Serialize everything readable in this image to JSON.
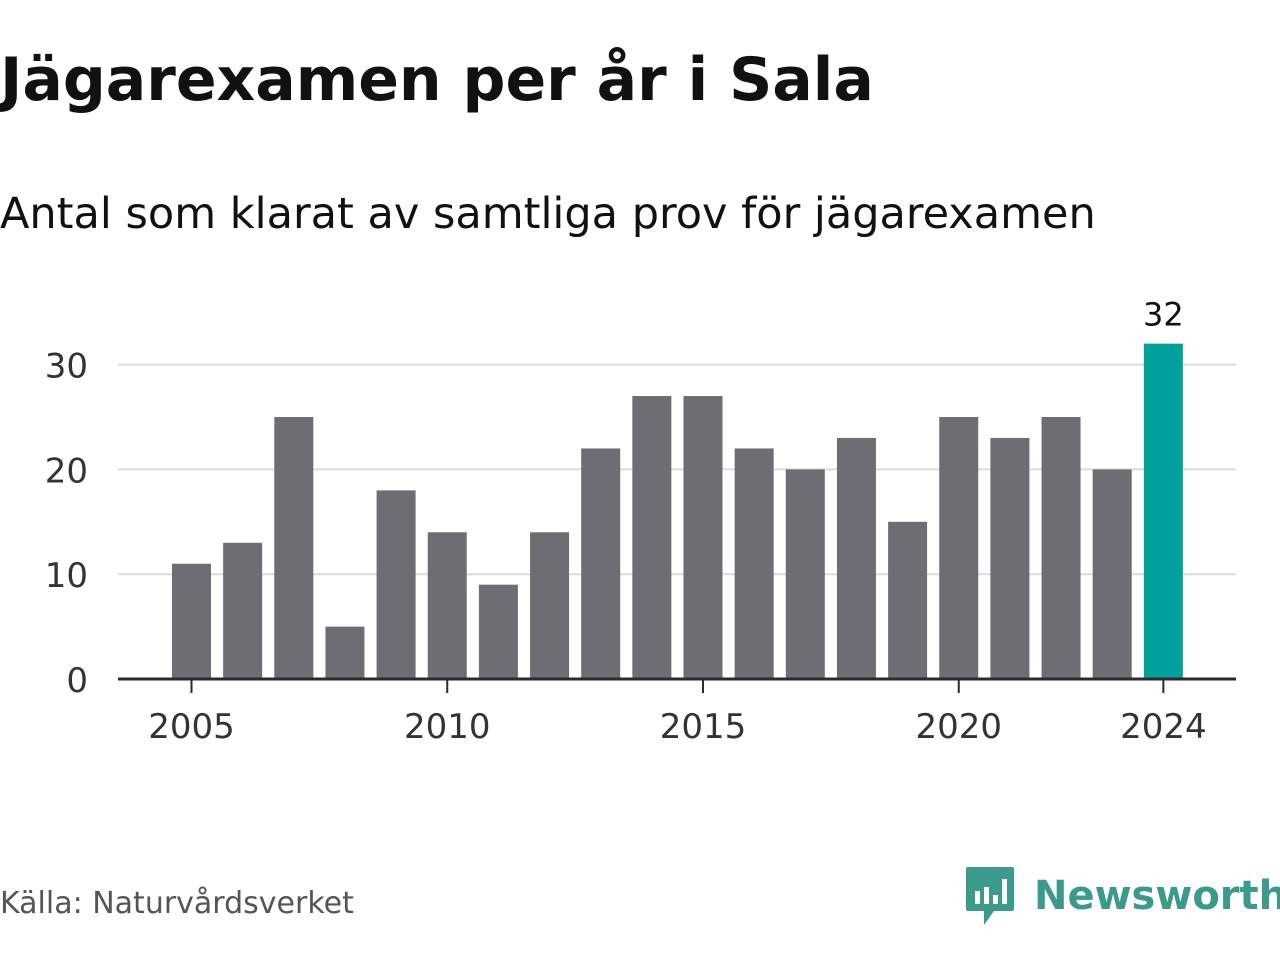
{
  "title": "Jägarexamen per år i Sala",
  "subtitle": "Antal som klarat av samtliga prov för jägarexamen",
  "source": "Källa: Naturvårdsverket",
  "brand": {
    "name": "Newsworthy",
    "icon": "newsworthy-logo-icon",
    "color": "#3b9a8c"
  },
  "colors": {
    "bar": "#6e6d73",
    "highlight": "#00a19a",
    "grid": "#dcdcdc",
    "axis": "#2b2b2b",
    "text": "#333333"
  },
  "chart_data": {
    "type": "bar",
    "categories": [
      2005,
      2006,
      2007,
      2008,
      2009,
      2010,
      2011,
      2012,
      2013,
      2014,
      2015,
      2016,
      2017,
      2018,
      2019,
      2020,
      2021,
      2022,
      2023,
      2024
    ],
    "values": [
      11,
      13,
      25,
      5,
      18,
      14,
      9,
      14,
      22,
      27,
      27,
      22,
      20,
      23,
      15,
      25,
      23,
      25,
      20,
      32
    ],
    "highlight_category": 2024,
    "data_labels": [
      {
        "category": 2024,
        "label": "32"
      }
    ],
    "x_ticks": [
      "2005",
      "2010",
      "2015",
      "2020",
      "2024"
    ],
    "y_ticks": [
      "0",
      "10",
      "20",
      "30"
    ],
    "ylim": [
      0,
      32
    ],
    "xlabel": "",
    "ylabel": "",
    "grid": true,
    "legend": "none"
  }
}
